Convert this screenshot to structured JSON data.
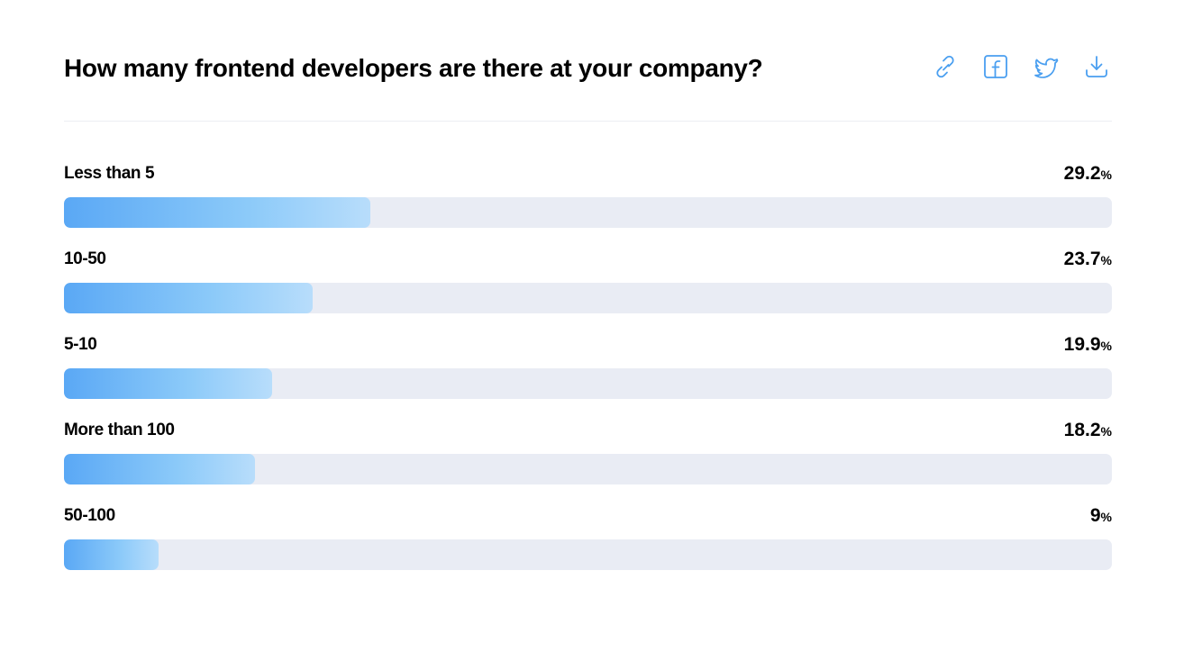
{
  "header": {
    "title": "How many frontend developers are there at your company?",
    "actions": [
      {
        "name": "link-icon",
        "label": "link"
      },
      {
        "name": "facebook-icon",
        "label": "facebook"
      },
      {
        "name": "twitter-icon",
        "label": "twitter"
      },
      {
        "name": "download-icon",
        "label": "download"
      }
    ]
  },
  "colors": {
    "accent": "#4a9ff0",
    "bar_start": "#5aa8f5",
    "bar_end": "#b8ddfb",
    "track": "#e9ecf4"
  },
  "chart_data": {
    "type": "bar",
    "orientation": "horizontal",
    "title": "How many frontend developers are there at your company?",
    "categories": [
      "Less than 5",
      "10-50",
      "5-10",
      "More than 100",
      "50-100"
    ],
    "values": [
      29.2,
      23.7,
      19.9,
      18.2,
      9
    ],
    "value_unit": "%",
    "xlim": [
      0,
      100
    ],
    "grid": false
  }
}
